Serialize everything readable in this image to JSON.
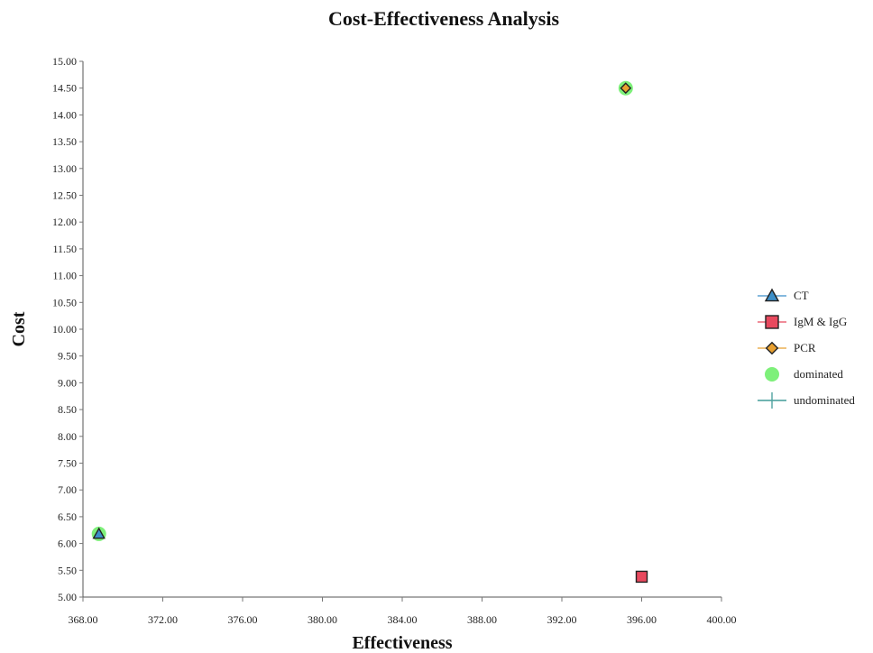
{
  "chart_data": {
    "type": "scatter",
    "title": "Cost-Effectiveness Analysis",
    "xlabel": "Effectiveness",
    "ylabel": "Cost",
    "xlim": [
      368,
      400
    ],
    "ylim": [
      5,
      15
    ],
    "x_ticks": [
      "368.00",
      "372.00",
      "376.00",
      "380.00",
      "384.00",
      "388.00",
      "392.00",
      "396.00",
      "400.00"
    ],
    "y_ticks": [
      "5.00",
      "5.50",
      "6.00",
      "6.50",
      "7.00",
      "7.50",
      "8.00",
      "8.50",
      "9.00",
      "9.50",
      "10.00",
      "10.50",
      "11.00",
      "11.50",
      "12.00",
      "12.50",
      "13.00",
      "13.50",
      "14.00",
      "14.50",
      "15.00"
    ],
    "grid": false,
    "legend_position": "right",
    "series": [
      {
        "name": "CT",
        "marker": "triangle",
        "color": "#3c8fc9",
        "points": [
          {
            "x": 368.8,
            "y": 6.18
          }
        ]
      },
      {
        "name": "IgM & IgG",
        "marker": "square",
        "color": "#e8495e",
        "points": [
          {
            "x": 396.0,
            "y": 5.38
          }
        ]
      },
      {
        "name": "PCR",
        "marker": "diamond",
        "color": "#e8a030",
        "points": [
          {
            "x": 395.2,
            "y": 14.5
          }
        ]
      },
      {
        "name": "dominated",
        "marker": "circle",
        "color": "#7ef07a",
        "points": [
          {
            "x": 368.8,
            "y": 6.18
          },
          {
            "x": 395.2,
            "y": 14.5
          }
        ]
      },
      {
        "name": "undominated",
        "marker": "cross",
        "color": "#4fa3a0",
        "points": []
      }
    ]
  }
}
